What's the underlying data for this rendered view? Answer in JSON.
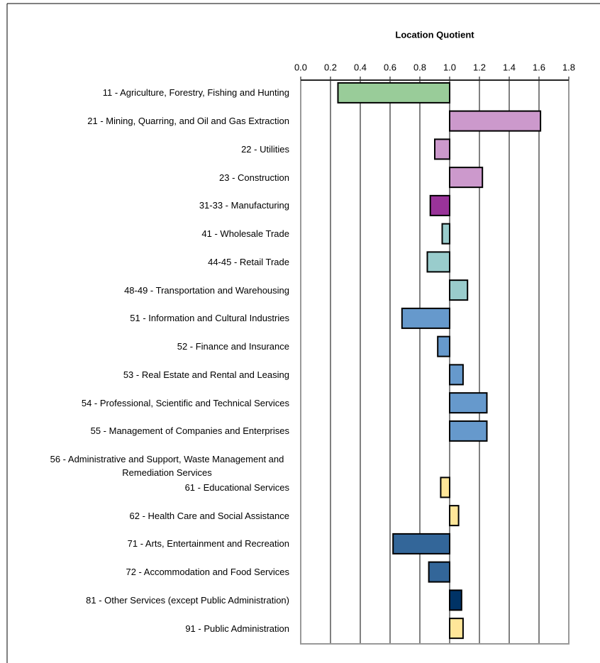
{
  "chart_data": {
    "type": "hbar",
    "x_label": "Location Quotient",
    "categories": [
      "11 - Agriculture, Forestry, Fishing and Hunting",
      "21 - Mining, Quarring, and Oil and Gas Extraction",
      "22 - Utilities",
      "23 - Construction",
      "31-33 - Manufacturing",
      "41 - Wholesale Trade",
      "44-45 - Retail Trade",
      "48-49 - Transportation and Warehousing",
      "51 - Information and Cultural Industries",
      "52 - Finance and Insurance",
      "53 - Real Estate and Rental and Leasing",
      "54 - Professional, Scientific and Technical Services",
      "55 - Management of Companies and Enterprises",
      "56 - Administrative and Support, Waste Management and Remediation Services",
      "61 - Educational Services",
      "62 - Health Care and Social Assistance",
      "71 - Arts, Entertainment and Recreation",
      "72 - Accommodation and Food Services",
      "81 - Other Services (except Public Administration)",
      "91 - Public Administration"
    ],
    "values": [
      0.25,
      1.61,
      0.9,
      1.22,
      0.87,
      0.95,
      0.85,
      1.12,
      0.68,
      0.92,
      1.09,
      1.25,
      1.25,
      1.0,
      0.94,
      1.06,
      0.62,
      0.86,
      1.08,
      1.09
    ],
    "colors": [
      "#99cc99",
      "#cc99cc",
      "#cc99cc",
      "#cc99cc",
      "#993399",
      "#99cccc",
      "#99cccc",
      "#99cccc",
      "#6699cc",
      "#6699cc",
      "#6699cc",
      "#6699cc",
      "#6699cc",
      "#6699cc",
      "#ffe699",
      "#ffe699",
      "#336699",
      "#336699",
      "#003366",
      "#ffe699"
    ],
    "base": 1.0,
    "xlim": [
      0,
      1.8
    ],
    "xticks": [
      {
        "value": 0,
        "label": "0.0"
      },
      0.2,
      0.4,
      0.6,
      0.8,
      {
        "value": 1,
        "label": "1.0"
      },
      1.2,
      1.4,
      1.6,
      1.8
    ],
    "grid": true
  }
}
